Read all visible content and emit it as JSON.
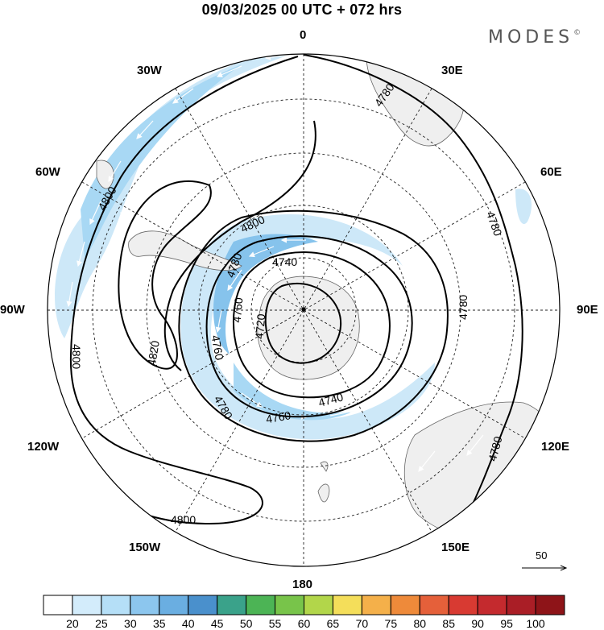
{
  "header": {
    "title": "09/03/2025  00 UTC  + 072 hrs",
    "brand": "MODES",
    "brand_mark": "©"
  },
  "map": {
    "projection": "south polar stereographic",
    "longitude_labels": {
      "top": "0",
      "top_right": "30E",
      "right_upper": "60E",
      "right": "90E",
      "right_lower": "120E",
      "bottom_right": "150E",
      "bottom": "180",
      "bottom_left": "150W",
      "left_lower": "120W",
      "left": "90W",
      "left_upper": "60W",
      "top_left": "30W"
    },
    "contour_labels": [
      "4780",
      "4780",
      "4780",
      "4780",
      "4800",
      "4800",
      "4800",
      "4800",
      "4820",
      "4780",
      "4760",
      "4740",
      "4720",
      "4760",
      "4780",
      "4740",
      "4760"
    ],
    "contour_interval": 20,
    "land_color": "#efefef",
    "wind_shading_colors": [
      "#cde8f8",
      "#a8d8f4",
      "#86c3ec"
    ]
  },
  "wind_vector": {
    "reference_label": "50"
  },
  "colorbar": {
    "labels": [
      "20",
      "25",
      "30",
      "35",
      "40",
      "45",
      "50",
      "55",
      "60",
      "65",
      "70",
      "75",
      "80",
      "85",
      "90",
      "95",
      "100"
    ],
    "colors": [
      "#ffffff",
      "#d3ecfb",
      "#b5dff7",
      "#8cc6ee",
      "#6aaee1",
      "#4a90cc",
      "#3aa28a",
      "#4cb455",
      "#78c44a",
      "#b2d64a",
      "#f4de5a",
      "#f4b04a",
      "#ee8a3a",
      "#e5603a",
      "#d83a32",
      "#c42a2e",
      "#aa1e26",
      "#8e1418"
    ]
  }
}
